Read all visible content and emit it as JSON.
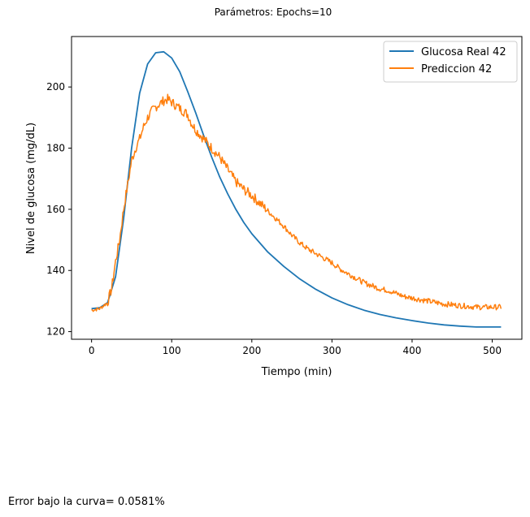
{
  "figure": {
    "title": "Parámetros:  Epochs=10",
    "footer": "Error bajo la curva= 0.0581%"
  },
  "colors": {
    "real": "#1f77b4",
    "pred": "#ff7f0e"
  },
  "chart_data": {
    "type": "line",
    "title": "",
    "xlabel": "Tiempo (min)",
    "ylabel": "Nivel de glucosa (mg/dL)",
    "xlim": [
      -25,
      537
    ],
    "ylim": [
      117.5,
      216.5
    ],
    "xticks": [
      0,
      100,
      200,
      300,
      400,
      500
    ],
    "yticks": [
      120,
      140,
      160,
      180,
      200
    ],
    "grid": false,
    "legend_position": "top-right",
    "series": [
      {
        "name": "Glucosa Real 42",
        "color": "#1f77b4",
        "x": [
          0,
          10,
          20,
          30,
          40,
          50,
          60,
          70,
          80,
          90,
          100,
          110,
          120,
          130,
          140,
          150,
          160,
          170,
          180,
          190,
          200,
          220,
          240,
          260,
          280,
          300,
          320,
          340,
          360,
          380,
          400,
          420,
          440,
          460,
          480,
          500,
          511
        ],
        "y": [
          127.5,
          127.8,
          129.5,
          138,
          157,
          180,
          198,
          207.5,
          211.2,
          211.5,
          209.5,
          205,
          198.5,
          191.5,
          184,
          177,
          170.5,
          165,
          160,
          155.7,
          152,
          146,
          141.3,
          137.2,
          133.8,
          131,
          128.8,
          127,
          125.6,
          124.5,
          123.6,
          122.8,
          122.2,
          121.8,
          121.5,
          121.5,
          121.5
        ]
      },
      {
        "name": "Prediccion 42",
        "color": "#ff7f0e",
        "x": [
          0,
          10,
          20,
          25,
          30,
          35,
          40,
          45,
          50,
          55,
          60,
          65,
          70,
          75,
          80,
          85,
          90,
          95,
          100,
          105,
          110,
          115,
          120,
          125,
          130,
          140,
          150,
          160,
          170,
          180,
          190,
          200,
          210,
          220,
          230,
          240,
          250,
          260,
          270,
          280,
          290,
          300,
          310,
          320,
          330,
          340,
          350,
          360,
          370,
          380,
          390,
          400,
          410,
          420,
          430,
          440,
          450,
          460,
          470,
          480,
          490,
          500,
          511
        ],
        "y": [
          127,
          127.5,
          129.5,
          134,
          143,
          150,
          160,
          168,
          176,
          180,
          183,
          187,
          190,
          192,
          193.5,
          194.5,
          195.5,
          196,
          195,
          194,
          193,
          192,
          191,
          188,
          186,
          183,
          180,
          177,
          173,
          169,
          166.5,
          164.5,
          162,
          159.5,
          157,
          154.5,
          151.5,
          149,
          147,
          145.5,
          144,
          142.5,
          140.5,
          139,
          137.5,
          136,
          135,
          134,
          133.5,
          132.5,
          131.5,
          131,
          130.5,
          130,
          129.5,
          129,
          128.8,
          128.5,
          128.3,
          128,
          128,
          128,
          128
        ]
      }
    ]
  }
}
